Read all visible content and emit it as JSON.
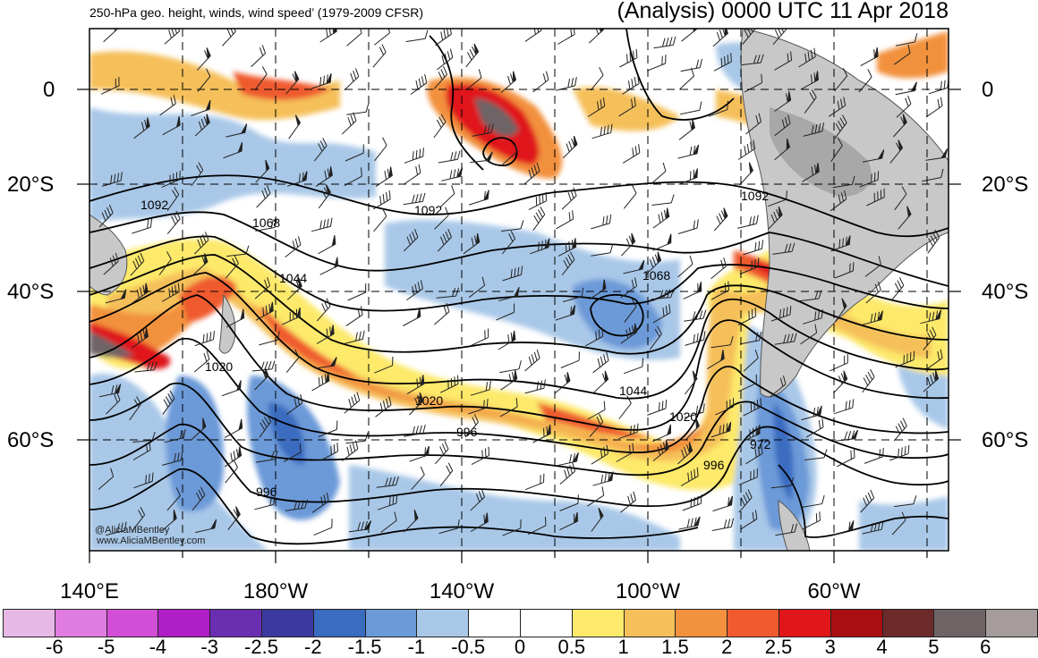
{
  "header": {
    "left": "250-hPa geo. height, winds, wind speed’ (1979-2009 CFSR)",
    "right": "(Analysis) 0000 UTC 11 Apr 2018"
  },
  "map": {
    "lat_labels": [
      "0",
      "20°S",
      "40°S",
      "60°S"
    ],
    "lon_labels": [
      "140°E",
      "180°W",
      "140°W",
      "100°W",
      "60°W"
    ],
    "contour_labels": [
      "1092",
      "1092",
      "1092",
      "1068",
      "1068",
      "1044",
      "1020",
      "1020",
      "1020",
      "996",
      "996",
      "996",
      "972",
      "1044"
    ],
    "credit": [
      "@AliciaMBentley",
      "www.AliciaMBentley.com"
    ]
  },
  "colorbar": {
    "colors": [
      "#e6b8e6",
      "#e07ce0",
      "#d24ed6",
      "#b01ec8",
      "#6a2fb0",
      "#3c3aa0",
      "#3a6cc0",
      "#6c9ad8",
      "#a9c8e8",
      "#ffffff",
      "#ffffff",
      "#fde96b",
      "#f5c05a",
      "#f2913e",
      "#ef5a2e",
      "#e0161a",
      "#a80f12",
      "#6c2a2a",
      "#6e6466",
      "#a69c9c"
    ],
    "labels": [
      "-6",
      "-5",
      "-4",
      "-3",
      "-2.5",
      "-2",
      "-1.5",
      "-1",
      "-0.5",
      "0",
      "0.5",
      "1",
      "1.5",
      "2",
      "2.5",
      "3",
      "4",
      "5",
      "6"
    ]
  }
}
